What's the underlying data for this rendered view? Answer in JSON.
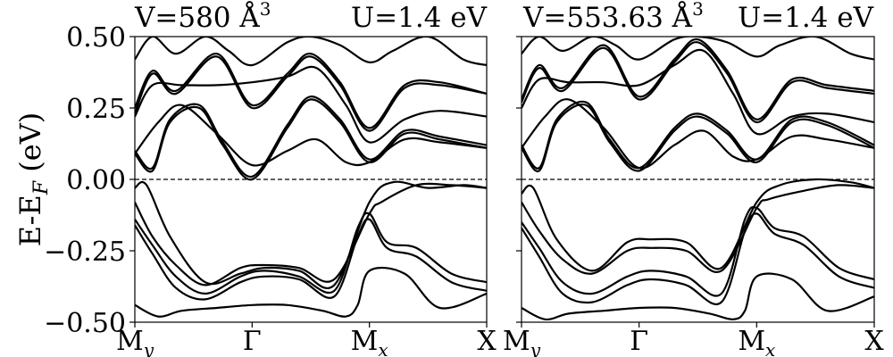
{
  "figure": {
    "ylabel": "E-E",
    "ylabel_sub": "F",
    "ylabel_unit": " (eV)"
  },
  "chart_data": [
    {
      "type": "line",
      "title_left": "V=580 Å",
      "title_left_sup": "3",
      "title_right": "U=1.4 eV",
      "ylim": [
        -0.5,
        0.5
      ],
      "yticks": [
        "0.50",
        "0.25",
        "0.00",
        "−0.25",
        "−0.50"
      ],
      "ytick_values": [
        0.5,
        0.25,
        0.0,
        -0.25,
        -0.5
      ],
      "xticks": [
        {
          "main": "M",
          "sub": "y",
          "x": 0
        },
        {
          "main": "Γ",
          "sub": "",
          "x": 1
        },
        {
          "main": "M",
          "sub": "x",
          "x": 2
        },
        {
          "main": "X",
          "sub": "",
          "x": 3
        }
      ],
      "xlim": [
        0,
        3
      ],
      "fermi_level": 0.0,
      "bands": [
        {
          "x": [
            0,
            0.15,
            0.3,
            0.55,
            0.75,
            1.0,
            1.3,
            1.5,
            1.75,
            2.0,
            2.3,
            2.6,
            3.0
          ],
          "y": [
            0.09,
            0.03,
            0.2,
            0.25,
            0.12,
            0.0,
            0.18,
            0.28,
            0.2,
            0.06,
            0.16,
            0.14,
            0.11
          ]
        },
        {
          "x": [
            0,
            0.15,
            0.3,
            0.55,
            0.75,
            1.0,
            1.3,
            1.5,
            1.75,
            2.0,
            2.3,
            2.6,
            3.0
          ],
          "y": [
            0.1,
            0.04,
            0.21,
            0.26,
            0.13,
            0.01,
            0.19,
            0.29,
            0.21,
            0.07,
            0.17,
            0.15,
            0.12
          ]
        },
        {
          "x": [
            0,
            0.2,
            0.4,
            0.7,
            1.0,
            1.3,
            1.55,
            1.8,
            2.0,
            2.3,
            2.6,
            3.0
          ],
          "y": [
            0.09,
            0.2,
            0.26,
            0.16,
            0.05,
            0.1,
            0.14,
            0.06,
            0.06,
            0.14,
            0.13,
            0.11
          ]
        },
        {
          "x": [
            0,
            0.15,
            0.4,
            0.7,
            1.0,
            1.3,
            1.55,
            1.8,
            2.0,
            2.3,
            2.6,
            3.0
          ],
          "y": [
            0.22,
            0.33,
            0.33,
            0.33,
            0.34,
            0.36,
            0.39,
            0.26,
            0.13,
            0.21,
            0.24,
            0.22
          ]
        },
        {
          "x": [
            0,
            0.15,
            0.35,
            0.7,
            1.0,
            1.3,
            1.5,
            1.75,
            2.0,
            2.3,
            2.6,
            3.0
          ],
          "y": [
            0.23,
            0.37,
            0.3,
            0.43,
            0.25,
            0.36,
            0.43,
            0.33,
            0.17,
            0.32,
            0.33,
            0.3
          ]
        },
        {
          "x": [
            0,
            0.15,
            0.35,
            0.7,
            1.0,
            1.3,
            1.5,
            1.75,
            2.0,
            2.3,
            2.6,
            3.0
          ],
          "y": [
            0.25,
            0.38,
            0.31,
            0.44,
            0.26,
            0.37,
            0.44,
            0.34,
            0.18,
            0.33,
            0.34,
            0.3
          ]
        },
        {
          "x": [
            0,
            0.15,
            0.35,
            0.6,
            0.8,
            1.0,
            1.3,
            1.5,
            1.75,
            2.0,
            2.2,
            2.5,
            2.8,
            3.0
          ],
          "y": [
            0.42,
            0.5,
            0.44,
            0.5,
            0.45,
            0.4,
            0.48,
            0.5,
            0.47,
            0.41,
            0.45,
            0.5,
            0.42,
            0.4
          ]
        },
        {
          "x": [
            0,
            0.1,
            0.3,
            0.6,
            0.9,
            1.1,
            1.4,
            1.7,
            2.0,
            2.2,
            2.5,
            2.8,
            3.0
          ],
          "y": [
            -0.03,
            -0.02,
            -0.2,
            -0.36,
            -0.33,
            -0.31,
            -0.32,
            -0.37,
            -0.08,
            -0.01,
            -0.03,
            -0.02,
            -0.03
          ]
        },
        {
          "x": [
            0,
            0.15,
            0.35,
            0.6,
            0.9,
            1.1,
            1.4,
            1.7,
            2.0,
            2.1,
            2.4,
            2.7,
            3.0
          ],
          "y": [
            -0.08,
            -0.2,
            -0.3,
            -0.37,
            -0.31,
            -0.3,
            -0.31,
            -0.35,
            -0.12,
            -0.08,
            -0.02,
            -0.02,
            -0.03
          ]
        },
        {
          "x": [
            0,
            0.15,
            0.35,
            0.6,
            0.9,
            1.1,
            1.4,
            1.7,
            1.9,
            2.0,
            2.15,
            2.4,
            2.7,
            3.0
          ],
          "y": [
            -0.14,
            -0.23,
            -0.34,
            -0.4,
            -0.34,
            -0.32,
            -0.34,
            -0.39,
            -0.17,
            -0.12,
            -0.22,
            -0.24,
            -0.33,
            -0.36
          ]
        },
        {
          "x": [
            0,
            0.15,
            0.35,
            0.6,
            0.9,
            1.1,
            1.4,
            1.7,
            1.9,
            2.0,
            2.15,
            2.4,
            2.7,
            3.0
          ],
          "y": [
            -0.16,
            -0.26,
            -0.38,
            -0.42,
            -0.36,
            -0.34,
            -0.35,
            -0.41,
            -0.2,
            -0.14,
            -0.24,
            -0.27,
            -0.36,
            -0.39
          ]
        },
        {
          "x": [
            0,
            0.2,
            0.4,
            0.7,
            1.0,
            1.3,
            1.6,
            1.8,
            1.9,
            2.0,
            2.3,
            2.6,
            3.0
          ],
          "y": [
            -0.44,
            -0.48,
            -0.46,
            -0.45,
            -0.44,
            -0.44,
            -0.46,
            -0.48,
            -0.44,
            -0.32,
            -0.33,
            -0.45,
            -0.4
          ]
        }
      ]
    },
    {
      "type": "line",
      "title_left": "V=553.63 Å",
      "title_left_sup": "3",
      "title_right": "U=1.4 eV",
      "ylim": [
        -0.5,
        0.5
      ],
      "yticks": [],
      "ytick_values": [
        0.5,
        0.25,
        0.0,
        -0.25,
        -0.5
      ],
      "xticks": [
        {
          "main": "M",
          "sub": "y",
          "x": 0
        },
        {
          "main": "Γ",
          "sub": "",
          "x": 1
        },
        {
          "main": "M",
          "sub": "x",
          "x": 2
        },
        {
          "main": "X",
          "sub": "",
          "x": 3
        }
      ],
      "xlim": [
        0,
        3
      ],
      "fermi_level": 0.0,
      "bands": [
        {
          "x": [
            0,
            0.15,
            0.3,
            0.55,
            0.75,
            1.0,
            1.3,
            1.5,
            1.75,
            2.0,
            2.3,
            2.6,
            3.0
          ],
          "y": [
            0.11,
            0.03,
            0.2,
            0.26,
            0.13,
            0.03,
            0.17,
            0.22,
            0.16,
            0.06,
            0.2,
            0.19,
            0.11
          ]
        },
        {
          "x": [
            0,
            0.15,
            0.3,
            0.55,
            0.75,
            1.0,
            1.3,
            1.5,
            1.75,
            2.0,
            2.3,
            2.6,
            3.0
          ],
          "y": [
            0.12,
            0.04,
            0.21,
            0.27,
            0.14,
            0.04,
            0.18,
            0.23,
            0.17,
            0.07,
            0.21,
            0.2,
            0.12
          ]
        },
        {
          "x": [
            0,
            0.2,
            0.4,
            0.7,
            1.0,
            1.3,
            1.55,
            1.8,
            2.0,
            2.3,
            2.6,
            3.0
          ],
          "y": [
            0.11,
            0.22,
            0.28,
            0.18,
            0.04,
            0.12,
            0.17,
            0.08,
            0.07,
            0.15,
            0.14,
            0.11
          ]
        },
        {
          "x": [
            0,
            0.15,
            0.4,
            0.7,
            1.0,
            1.3,
            1.55,
            1.8,
            2.0,
            2.3,
            2.6,
            3.0
          ],
          "y": [
            0.25,
            0.35,
            0.34,
            0.34,
            0.33,
            0.4,
            0.45,
            0.3,
            0.16,
            0.22,
            0.23,
            0.2
          ]
        },
        {
          "x": [
            0,
            0.15,
            0.35,
            0.7,
            1.0,
            1.3,
            1.5,
            1.75,
            2.0,
            2.3,
            2.6,
            3.0
          ],
          "y": [
            0.27,
            0.39,
            0.31,
            0.46,
            0.28,
            0.41,
            0.48,
            0.37,
            0.2,
            0.34,
            0.32,
            0.3
          ]
        },
        {
          "x": [
            0,
            0.15,
            0.35,
            0.7,
            1.0,
            1.3,
            1.5,
            1.75,
            2.0,
            2.3,
            2.6,
            3.0
          ],
          "y": [
            0.28,
            0.4,
            0.32,
            0.47,
            0.29,
            0.42,
            0.49,
            0.38,
            0.21,
            0.35,
            0.33,
            0.31
          ]
        },
        {
          "x": [
            0,
            0.15,
            0.35,
            0.6,
            0.8,
            1.0,
            1.3,
            1.5,
            1.75,
            2.0,
            2.2,
            2.5,
            2.8,
            3.0
          ],
          "y": [
            0.44,
            0.5,
            0.45,
            0.5,
            0.47,
            0.42,
            0.49,
            0.5,
            0.48,
            0.43,
            0.47,
            0.5,
            0.44,
            0.42
          ]
        },
        {
          "x": [
            0,
            0.1,
            0.3,
            0.6,
            0.9,
            1.1,
            1.4,
            1.7,
            2.0,
            2.2,
            2.5,
            2.8,
            3.0
          ],
          "y": [
            -0.05,
            -0.03,
            -0.21,
            -0.32,
            -0.22,
            -0.21,
            -0.22,
            -0.31,
            -0.08,
            -0.02,
            0.0,
            -0.01,
            -0.03
          ]
        },
        {
          "x": [
            0,
            0.15,
            0.35,
            0.6,
            0.9,
            1.1,
            1.4,
            1.7,
            2.0,
            2.1,
            2.4,
            2.7,
            3.0
          ],
          "y": [
            -0.08,
            -0.18,
            -0.28,
            -0.33,
            -0.25,
            -0.24,
            -0.25,
            -0.32,
            -0.1,
            -0.07,
            -0.04,
            -0.02,
            -0.03
          ]
        },
        {
          "x": [
            0,
            0.15,
            0.35,
            0.6,
            0.9,
            1.1,
            1.4,
            1.7,
            1.9,
            2.0,
            2.15,
            2.4,
            2.7,
            3.0
          ],
          "y": [
            -0.15,
            -0.24,
            -0.36,
            -0.4,
            -0.34,
            -0.32,
            -0.34,
            -0.4,
            -0.14,
            -0.1,
            -0.17,
            -0.2,
            -0.31,
            -0.35
          ]
        },
        {
          "x": [
            0,
            0.15,
            0.35,
            0.6,
            0.9,
            1.1,
            1.4,
            1.7,
            1.9,
            2.0,
            2.15,
            2.4,
            2.7,
            3.0
          ],
          "y": [
            -0.17,
            -0.27,
            -0.4,
            -0.43,
            -0.37,
            -0.35,
            -0.37,
            -0.43,
            -0.18,
            -0.12,
            -0.19,
            -0.23,
            -0.34,
            -0.38
          ]
        },
        {
          "x": [
            0,
            0.2,
            0.4,
            0.7,
            1.0,
            1.3,
            1.6,
            1.8,
            1.9,
            2.0,
            2.3,
            2.6,
            3.0
          ],
          "y": [
            -0.45,
            -0.49,
            -0.47,
            -0.46,
            -0.45,
            -0.45,
            -0.47,
            -0.49,
            -0.46,
            -0.34,
            -0.35,
            -0.46,
            -0.41
          ]
        }
      ]
    }
  ]
}
